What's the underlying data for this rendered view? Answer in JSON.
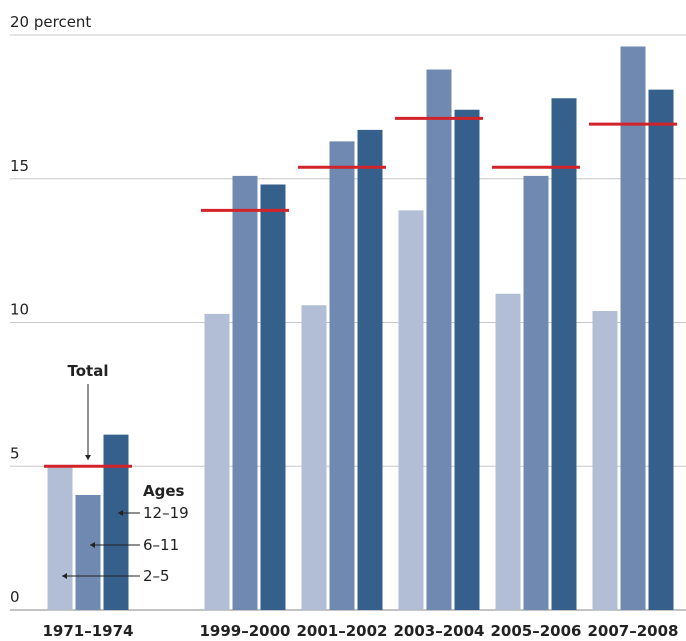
{
  "chart_data": {
    "type": "bar",
    "categories": [
      "1971–1974",
      "1999–2000",
      "2001–2002",
      "2003–2004",
      "2005–2006",
      "2007–2008"
    ],
    "series": [
      {
        "name": "2–5",
        "color": "#b1bed6",
        "values": [
          5.0,
          10.3,
          10.6,
          13.9,
          11.0,
          10.4
        ]
      },
      {
        "name": "6–11",
        "color": "#7089b1",
        "values": [
          4.0,
          15.1,
          16.3,
          18.8,
          15.1,
          19.6
        ]
      },
      {
        "name": "12–19",
        "color": "#35608b",
        "values": [
          6.1,
          14.8,
          16.7,
          17.4,
          17.8,
          18.1
        ]
      },
      {
        "name": "Total",
        "color": "#d2232a",
        "values": [
          5.0,
          13.9,
          15.4,
          17.1,
          15.4,
          16.9
        ],
        "mark": "line"
      }
    ],
    "legend_title": "Ages",
    "ylim": [
      0,
      20
    ],
    "yticks": [
      0,
      5,
      10,
      15,
      {
        "value": 20,
        "label": "20 percent"
      }
    ],
    "grid": true
  }
}
